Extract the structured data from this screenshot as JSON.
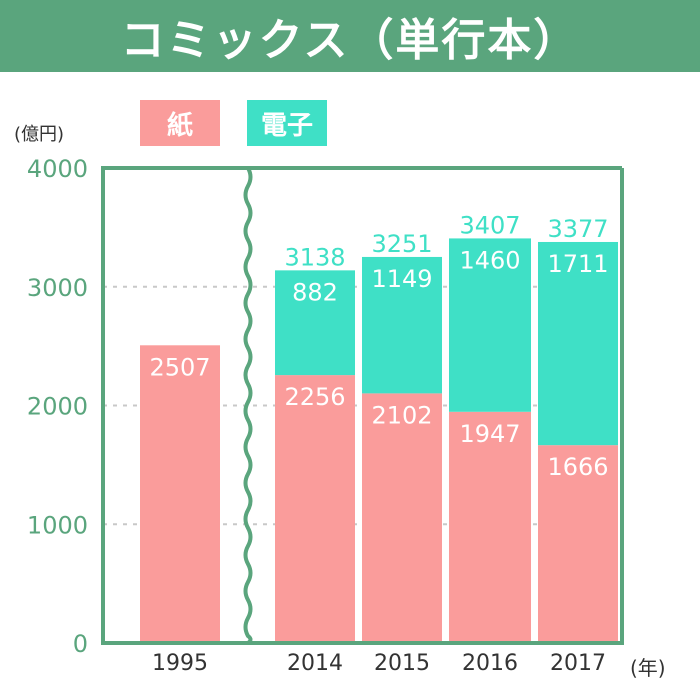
{
  "header": {
    "title": "コミックス（単行本）"
  },
  "chart_data": {
    "type": "bar",
    "stacked": true,
    "categories": [
      "1995",
      "2014",
      "2015",
      "2016",
      "2017"
    ],
    "series": [
      {
        "name": "紙",
        "color": "#fa9c9b",
        "values": [
          2507,
          2256,
          2102,
          1947,
          1666
        ]
      },
      {
        "name": "電子",
        "color": "#3fe0c6",
        "values": [
          0,
          882,
          1149,
          1460,
          1711
        ]
      }
    ],
    "totals": [
      null,
      3138,
      3251,
      3407,
      3377
    ],
    "ylim": [
      0,
      4000
    ],
    "yticks": [
      "0",
      "1000",
      "2000",
      "3000",
      "4000"
    ],
    "ylabel": "(億円)",
    "xlabel": "(年)",
    "grid": true,
    "axis_break_after": "1995",
    "legend": "top-left"
  }
}
